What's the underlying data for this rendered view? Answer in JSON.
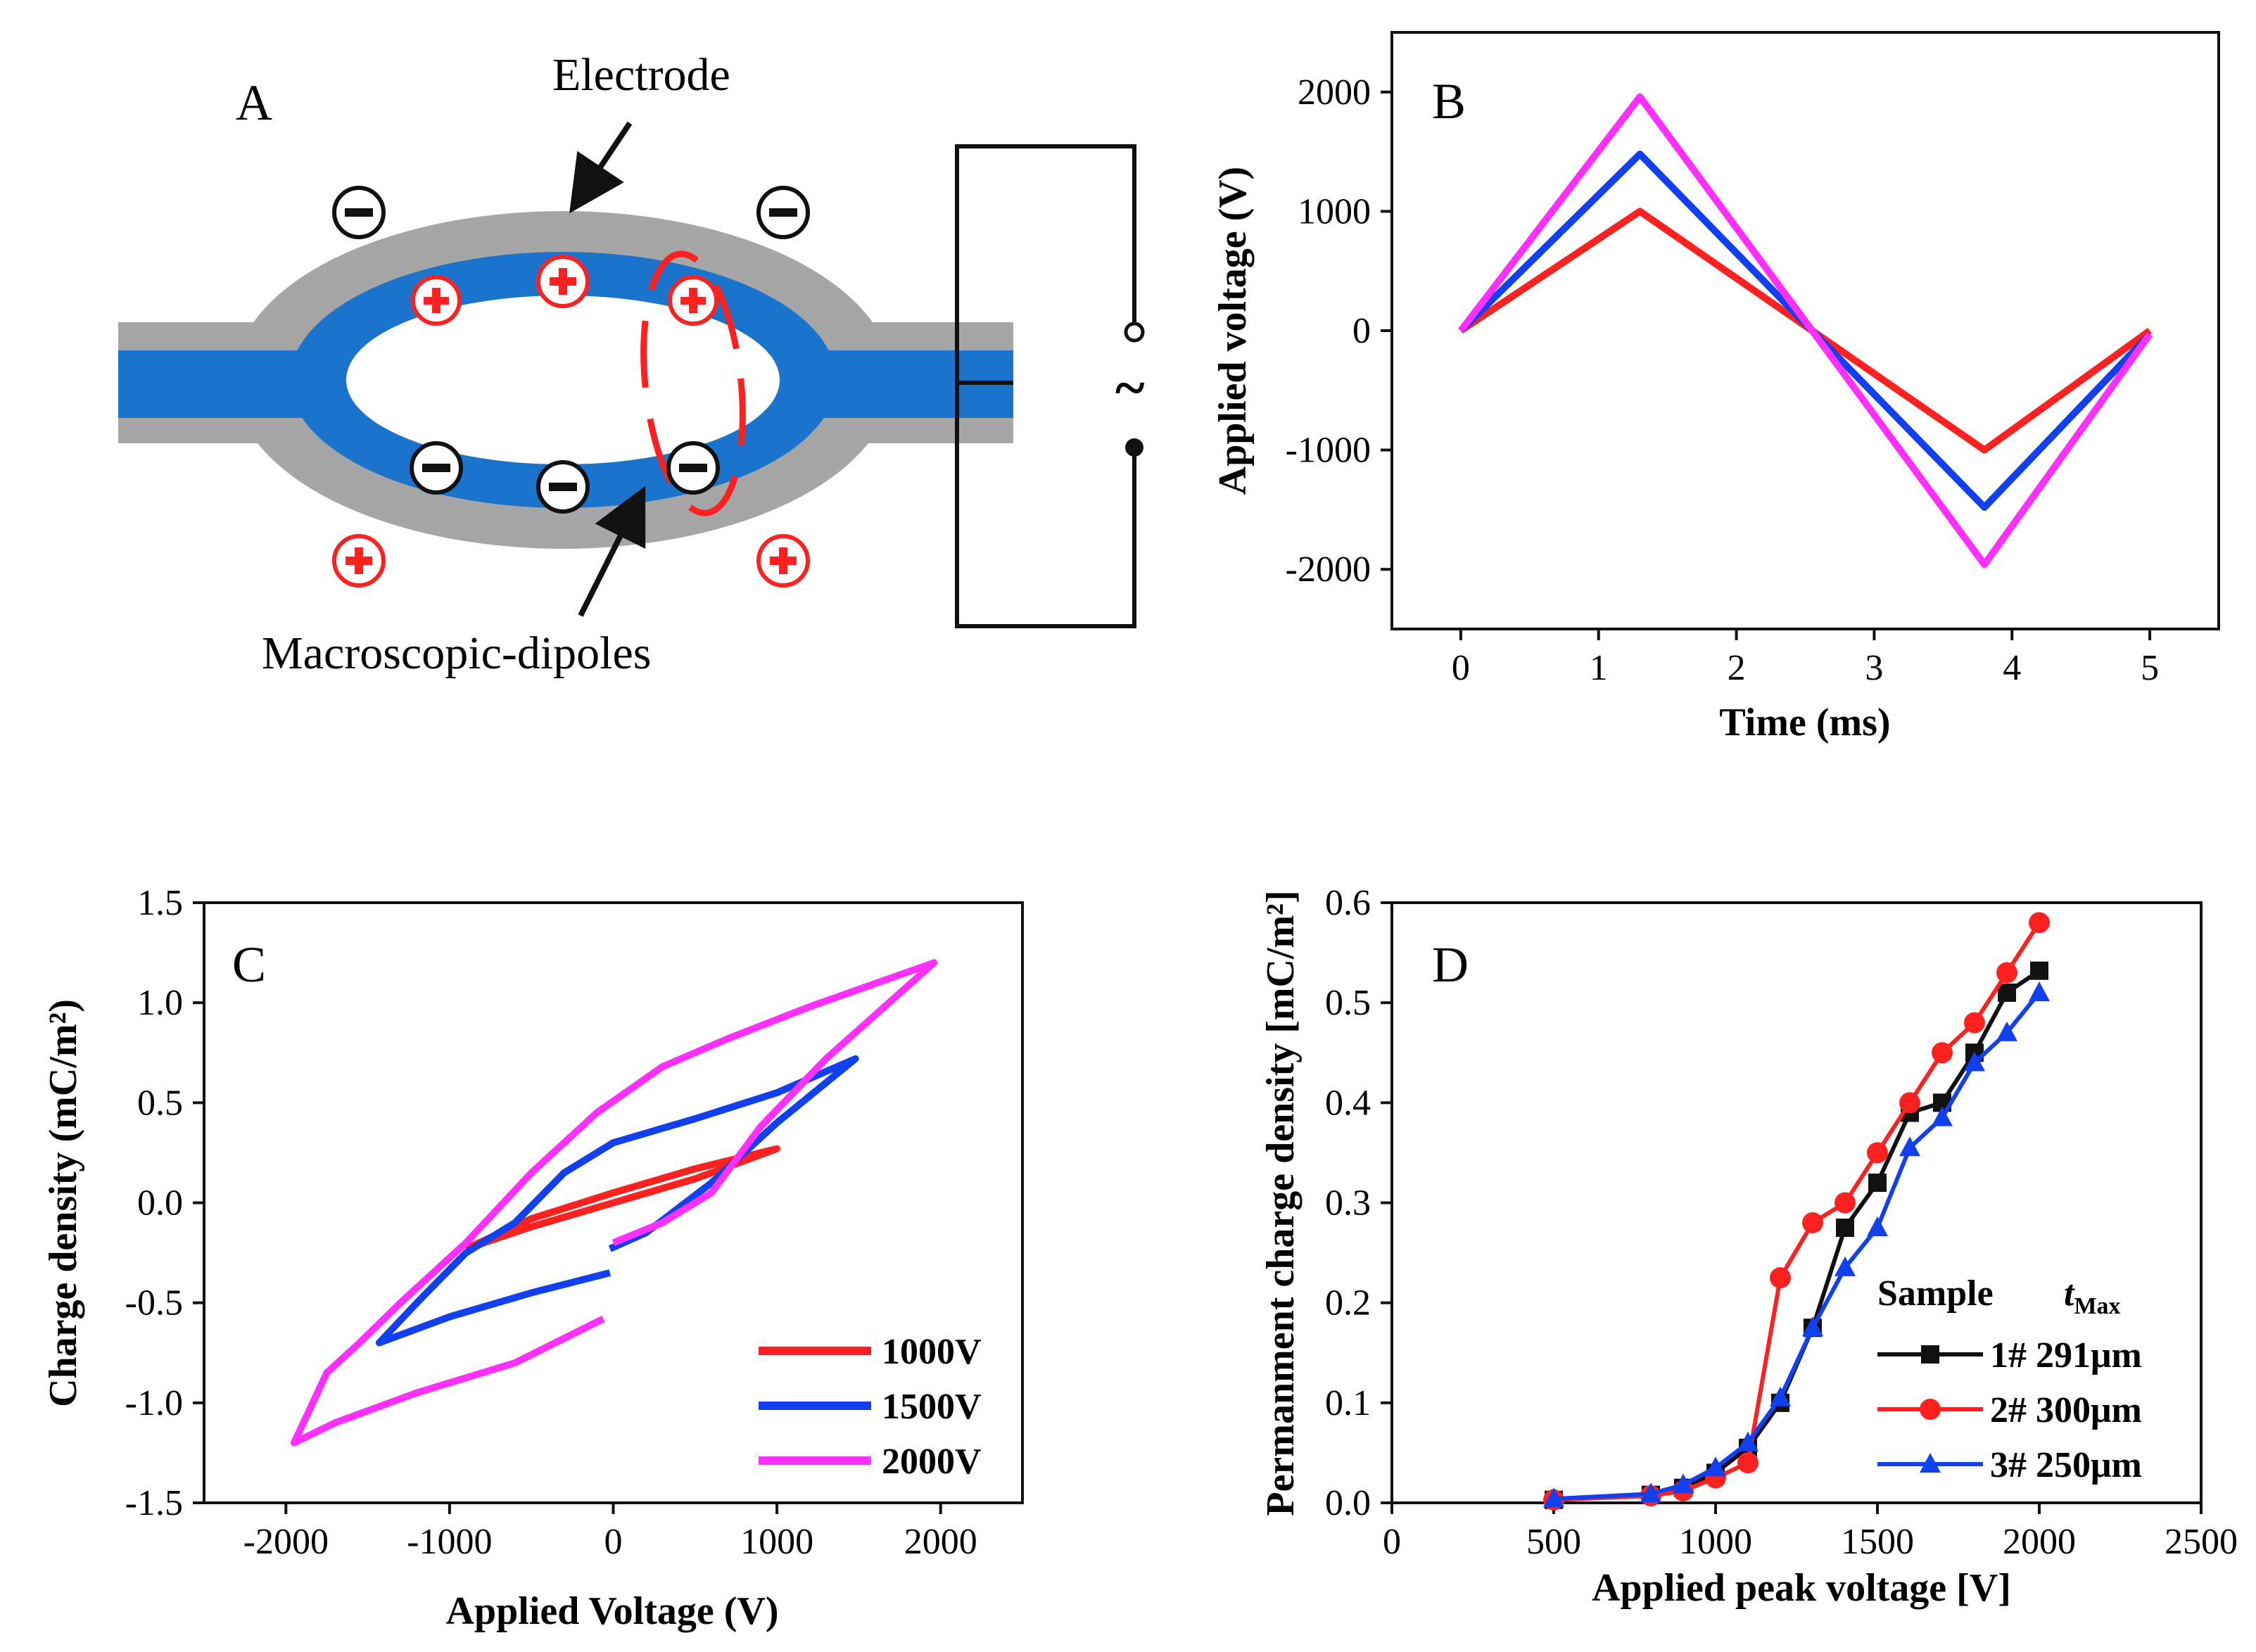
{
  "colors": {
    "red": "#ff2020",
    "blue": "#1040f0",
    "magenta": "#ff30ff",
    "black": "#111111",
    "electrode_gray": "#a6a6a6",
    "film_blue": "#1b74cc"
  },
  "diagram": {
    "panel_label": "A",
    "electrode_label": "Electrode",
    "dipoles_label": "Macroscopic-dipoles",
    "ac_source_symbol": "~"
  },
  "chart_data": [
    {
      "panel": "B",
      "type": "line",
      "xlabel": "Time (ms)",
      "ylabel": "Applied voltage (V)",
      "xlim": [
        -0.5,
        5.5
      ],
      "ylim": [
        -2500,
        2500
      ],
      "xticks": [
        0,
        1,
        2,
        3,
        4,
        5
      ],
      "yticks": [
        -2000,
        -1000,
        0,
        1000,
        2000
      ],
      "series": [
        {
          "name": "1000V",
          "color": "red",
          "x": [
            0,
            1.3,
            3.8,
            5
          ],
          "y": [
            0,
            1000,
            -1000,
            0
          ]
        },
        {
          "name": "1500V",
          "color": "blue",
          "x": [
            0,
            1.3,
            3.8,
            5
          ],
          "y": [
            0,
            1480,
            -1480,
            -30
          ]
        },
        {
          "name": "2000V",
          "color": "magenta",
          "x": [
            0,
            1.3,
            3.8,
            5
          ],
          "y": [
            0,
            1960,
            -1960,
            -30
          ]
        }
      ]
    },
    {
      "panel": "C",
      "type": "line",
      "xlabel": "Applied Voltage (V)",
      "ylabel": "Charge density (mC/m²)",
      "xlim": [
        -2500,
        2500
      ],
      "ylim": [
        -1.5,
        1.5
      ],
      "xticks": [
        -2000,
        -1000,
        0,
        1000,
        2000
      ],
      "yticks": [
        -1.5,
        -1.0,
        -0.5,
        0.0,
        0.5,
        1.0,
        1.5
      ],
      "legend": [
        "1000V",
        "1500V",
        "2000V"
      ],
      "series": [
        {
          "name": "1000V",
          "color": "red",
          "x": [
            -900,
            -500,
            0,
            500,
            1000,
            500,
            0,
            -500,
            -900
          ],
          "y": [
            -0.23,
            -0.12,
            0.0,
            0.12,
            0.27,
            0.17,
            0.05,
            -0.08,
            -0.23
          ]
        },
        {
          "name": "1500V",
          "color": "blue",
          "x": [
            -20,
            200,
            600,
            1000,
            1480,
            1000,
            500,
            0,
            -300,
            -600,
            -900,
            -1200,
            -1430,
            -1000,
            -500,
            -20
          ],
          "y": [
            -0.23,
            -0.15,
            0.1,
            0.4,
            0.72,
            0.55,
            0.42,
            0.3,
            0.15,
            -0.1,
            -0.25,
            -0.5,
            -0.7,
            -0.57,
            -0.45,
            -0.35
          ]
        },
        {
          "name": "2000V",
          "color": "magenta",
          "x": [
            -60,
            -600,
            -1200,
            -1700,
            -1950,
            -1750,
            -1550,
            -1300,
            -900,
            -500,
            -100,
            300,
            700,
            1200,
            1960,
            1300,
            900,
            600,
            300,
            0
          ],
          "y": [
            -0.58,
            -0.8,
            -0.95,
            -1.1,
            -1.2,
            -0.85,
            -0.7,
            -0.5,
            -0.2,
            0.15,
            0.45,
            0.68,
            0.82,
            0.98,
            1.2,
            0.72,
            0.38,
            0.05,
            -0.1,
            -0.2
          ]
        }
      ]
    },
    {
      "panel": "D",
      "type": "line",
      "xlabel": "Applied peak voltage [V]",
      "ylabel": "Permanment charge density [mC/m²]",
      "xlim": [
        0,
        2500
      ],
      "ylim": [
        0,
        0.6
      ],
      "xticks": [
        0,
        500,
        1000,
        1500,
        2000,
        2500
      ],
      "yticks": [
        0.0,
        0.1,
        0.2,
        0.3,
        0.4,
        0.5,
        0.6
      ],
      "legend_header": {
        "sample": "Sample",
        "t": "t",
        "t_sub": "Max"
      },
      "series": [
        {
          "name": "1#",
          "t_max": "291μm",
          "color": "black",
          "marker": "square",
          "x": [
            500,
            800,
            900,
            1000,
            1100,
            1200,
            1300,
            1400,
            1500,
            1600,
            1700,
            1800,
            1900,
            2000
          ],
          "y": [
            0.003,
            0.008,
            0.015,
            0.03,
            0.055,
            0.1,
            0.175,
            0.275,
            0.32,
            0.39,
            0.4,
            0.45,
            0.51,
            0.532
          ]
        },
        {
          "name": "2#",
          "t_max": "300μm",
          "color": "red",
          "marker": "circle",
          "x": [
            500,
            800,
            900,
            1000,
            1100,
            1200,
            1300,
            1400,
            1500,
            1600,
            1700,
            1800,
            1900,
            2000
          ],
          "y": [
            0.003,
            0.007,
            0.012,
            0.025,
            0.04,
            0.225,
            0.28,
            0.3,
            0.35,
            0.4,
            0.45,
            0.48,
            0.53,
            0.58
          ]
        },
        {
          "name": "3#",
          "t_max": "250μm",
          "color": "blue",
          "marker": "triangle",
          "x": [
            500,
            800,
            900,
            1000,
            1100,
            1200,
            1300,
            1400,
            1500,
            1600,
            1700,
            1800,
            1900,
            2000
          ],
          "y": [
            0.004,
            0.009,
            0.018,
            0.035,
            0.06,
            0.105,
            0.175,
            0.235,
            0.275,
            0.355,
            0.385,
            0.44,
            0.47,
            0.51
          ]
        }
      ]
    }
  ]
}
